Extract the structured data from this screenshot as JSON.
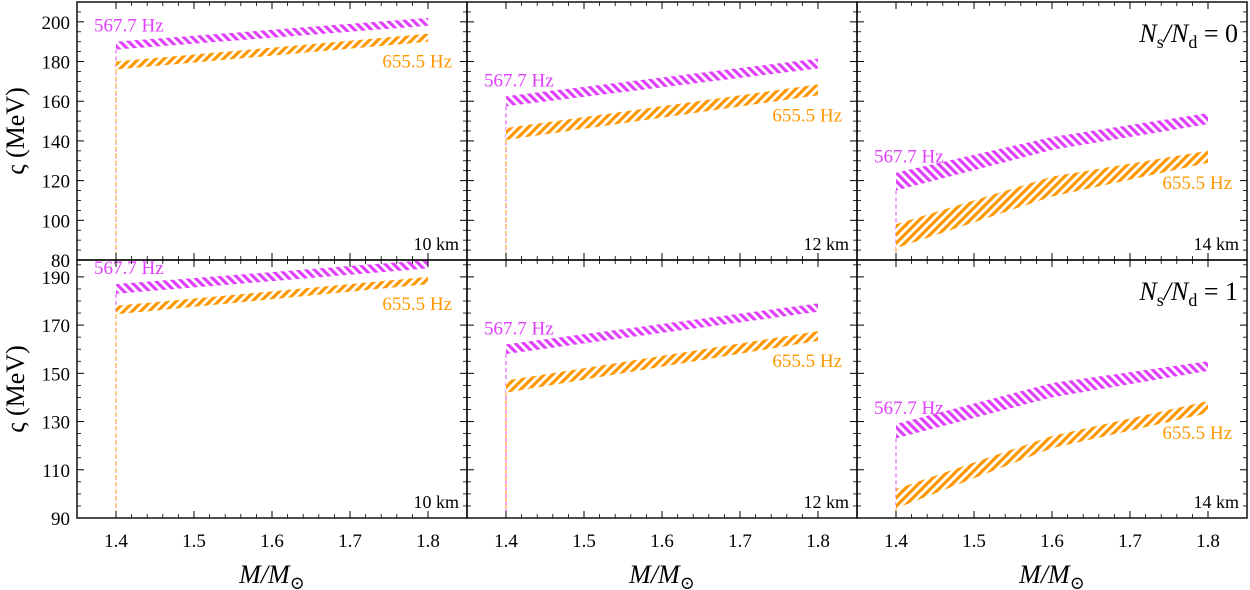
{
  "chart_data": {
    "type": "area",
    "layout": "2 rows x 3 columns, shared x axis per column, shared y axis per row",
    "xlabel": "M/M",
    "xlabel_sub": "⊙",
    "xlim": [
      1.35,
      1.85
    ],
    "xticks": [
      "1.4",
      "1.5",
      "1.6",
      "1.7",
      "1.8"
    ],
    "xtick_values": [
      1.4,
      1.5,
      1.6,
      1.7,
      1.8
    ],
    "colors": {
      "567.7 Hz": "#e040fb",
      "655.5 Hz": "#ff9800"
    },
    "rows": [
      {
        "ylabel": "ς (MeV)",
        "ylim": [
          80,
          210
        ],
        "yticks": [
          "80",
          "100",
          "120",
          "140",
          "160",
          "180",
          "200"
        ],
        "ytick_values": [
          80,
          100,
          120,
          140,
          160,
          180,
          200
        ],
        "ratio_annotation": {
          "text": "N",
          "sub1": "s",
          "slash": "/N",
          "sub2": "d",
          "value": " = 0"
        }
      },
      {
        "ylabel": "ς (MeV)",
        "ylim": [
          90,
          197
        ],
        "yticks": [
          "90",
          "110",
          "130",
          "150",
          "170",
          "190"
        ],
        "ytick_values": [
          90,
          110,
          130,
          150,
          170,
          190
        ],
        "ratio_annotation": {
          "text": "N",
          "sub1": "s",
          "slash": "/N",
          "sub2": "d",
          "value": " = 1"
        }
      }
    ],
    "panels": [
      {
        "row": 0,
        "col": 0,
        "radius": "10 km",
        "series": [
          {
            "name": "567.7 Hz",
            "x": [
              1.4,
              1.8
            ],
            "lower": [
              186,
              198
            ],
            "upper": [
              190,
              202
            ]
          },
          {
            "name": "655.5 Hz",
            "x": [
              1.4,
              1.8
            ],
            "lower": [
              176,
              190
            ],
            "upper": [
              180,
              194
            ]
          }
        ]
      },
      {
        "row": 0,
        "col": 1,
        "radius": "12 km",
        "series": [
          {
            "name": "567.7 Hz",
            "x": [
              1.4,
              1.8
            ],
            "lower": [
              157.5,
              176.5
            ],
            "upper": [
              162.5,
              181.5
            ]
          },
          {
            "name": "655.5 Hz",
            "x": [
              1.4,
              1.8
            ],
            "lower": [
              140.5,
              163
            ],
            "upper": [
              146.5,
              168.5
            ]
          }
        ]
      },
      {
        "row": 0,
        "col": 2,
        "radius": "14 km",
        "series": [
          {
            "name": "567.7 Hz",
            "x": [
              1.4,
              1.6,
              1.8
            ],
            "lower": [
              115,
              135.5,
              148.5
            ],
            "upper": [
              124,
              142,
              154
            ]
          },
          {
            "name": "655.5 Hz",
            "x": [
              1.4,
              1.6,
              1.8
            ],
            "lower": [
              86,
              112,
              129
            ],
            "upper": [
              98,
              122,
              135
            ]
          }
        ]
      },
      {
        "row": 1,
        "col": 0,
        "radius": "10 km",
        "series": [
          {
            "name": "567.7 Hz",
            "x": [
              1.4,
              1.8
            ],
            "lower": [
              183,
              193.5
            ],
            "upper": [
              187,
              197
            ]
          },
          {
            "name": "655.5 Hz",
            "x": [
              1.4,
              1.8
            ],
            "lower": [
              174.5,
              187
            ],
            "upper": [
              178,
              190
            ]
          }
        ]
      },
      {
        "row": 1,
        "col": 1,
        "radius": "12 km",
        "series": [
          {
            "name": "567.7 Hz",
            "x": [
              1.4,
              1.8
            ],
            "lower": [
              158,
              175.5
            ],
            "upper": [
              162,
              179
            ]
          },
          {
            "name": "655.5 Hz",
            "x": [
              1.4,
              1.8
            ],
            "lower": [
              142,
              163.5
            ],
            "upper": [
              147,
              167.5
            ]
          }
        ]
      },
      {
        "row": 1,
        "col": 2,
        "radius": "14 km",
        "series": [
          {
            "name": "567.7 Hz",
            "x": [
              1.4,
              1.6,
              1.8
            ],
            "lower": [
              123,
              140,
              151
            ],
            "upper": [
              129,
              146,
              155
            ]
          },
          {
            "name": "655.5 Hz",
            "x": [
              1.4,
              1.6,
              1.8
            ],
            "lower": [
              94,
              119,
              133.5
            ],
            "upper": [
              102,
              124,
              138.5
            ]
          }
        ]
      }
    ]
  }
}
